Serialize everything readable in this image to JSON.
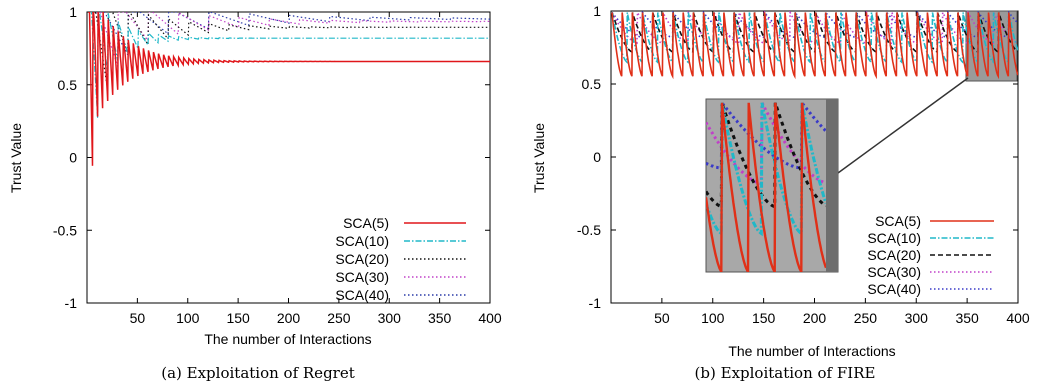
{
  "chart_data": [
    {
      "type": "line",
      "caption": "(a) Exploitation of Regret",
      "xlabel": "The number of Interactions",
      "ylabel": "Trust Value",
      "xlim": [
        0,
        400
      ],
      "ylim": [
        -1,
        1
      ],
      "xticks": [
        "50",
        "100",
        "150",
        "200",
        "250",
        "300",
        "350",
        "400"
      ],
      "yticks": [
        "1",
        "0.5",
        "0",
        "-0.5",
        "-1"
      ],
      "grid": false,
      "legend_position": "bottom-right",
      "series": [
        {
          "name": "SCA(5)",
          "color": "#e0161a",
          "style": "solid",
          "converged": 0.66,
          "dip": 0.44,
          "period": 5
        },
        {
          "name": "SCA(10)",
          "color": "#20b8c8",
          "style": "dashdot",
          "converged": 0.82,
          "dip": 0.62,
          "period": 10
        },
        {
          "name": "SCA(20)",
          "color": "#111111",
          "style": "dotted",
          "converged": 0.895,
          "dip": 0.72,
          "period": 20
        },
        {
          "name": "SCA(30)",
          "color": "#c040c8",
          "style": "dotted",
          "converged": 0.935,
          "dip": 0.8,
          "period": 30
        },
        {
          "name": "SCA(40)",
          "color": "#2a3aa8",
          "style": "dotted",
          "converged": 0.955,
          "dip": 0.84,
          "period": 40
        }
      ]
    },
    {
      "type": "line",
      "caption": "(b) Exploitation of FIRE",
      "xlabel": "The number of Interactions",
      "ylabel": "Trust Value",
      "xlim": [
        0,
        400
      ],
      "ylim": [
        -1,
        1
      ],
      "xticks": [
        "50",
        "100",
        "150",
        "200",
        "250",
        "300",
        "350",
        "400"
      ],
      "yticks": [
        "1",
        "0.5",
        "0",
        "-0.5",
        "-1"
      ],
      "grid": false,
      "legend_position": "bottom-right",
      "inset": "zoom of x 355-400, y 0.55-1",
      "series": [
        {
          "name": "SCA(5)",
          "color": "#e03018",
          "style": "solid",
          "low": 0.55,
          "high": 0.99,
          "period": 10
        },
        {
          "name": "SCA(10)",
          "color": "#20b8c8",
          "style": "dashdot",
          "low": 0.65,
          "high": 0.99,
          "period": 15
        },
        {
          "name": "SCA(20)",
          "color": "#111111",
          "style": "dashed",
          "low": 0.72,
          "high": 0.99,
          "period": 20
        },
        {
          "name": "SCA(30)",
          "color": "#c040c8",
          "style": "dotted",
          "low": 0.78,
          "high": 0.99,
          "period": 25
        },
        {
          "name": "SCA(40)",
          "color": "#3a3ac8",
          "style": "dotted",
          "low": 0.82,
          "high": 0.99,
          "period": 30
        }
      ]
    }
  ]
}
